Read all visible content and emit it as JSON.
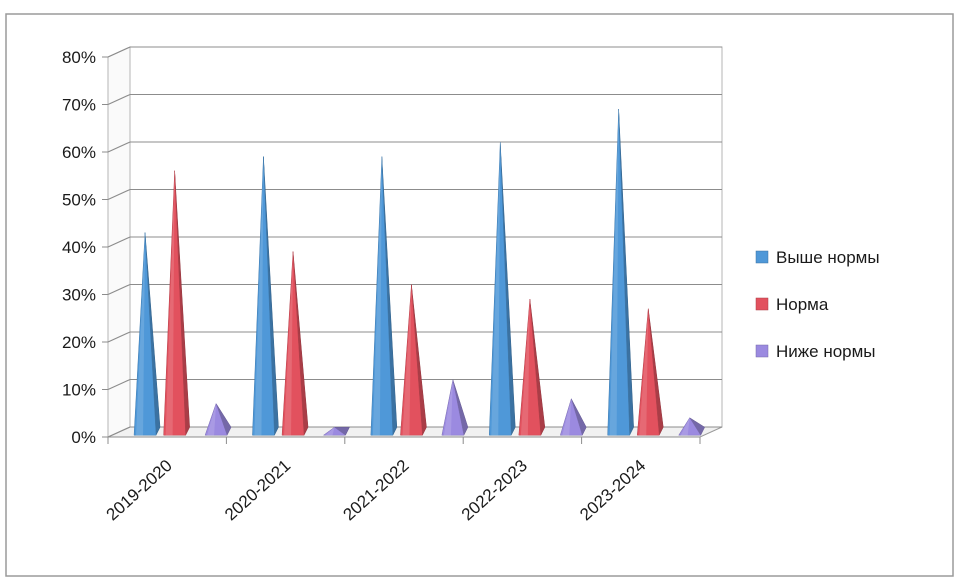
{
  "chart_data": {
    "type": "bar",
    "style": "3d-pyramid",
    "categories": [
      "2019-2020",
      "2020-2021",
      "2021-2022",
      "2022-2023",
      "2023-2024"
    ],
    "series": [
      {
        "name": "Выше нормы",
        "color": "#4f98d8",
        "values": [
          42,
          58,
          58,
          61,
          68
        ]
      },
      {
        "name": "Норма",
        "color": "#e2515e",
        "values": [
          55,
          38,
          31,
          28,
          26
        ]
      },
      {
        "name": "Ниже нормы",
        "color": "#9b8ae0",
        "values": [
          6,
          1,
          11,
          7,
          3
        ]
      }
    ],
    "y_ticks": [
      "0%",
      "10%",
      "20%",
      "30%",
      "40%",
      "50%",
      "60%",
      "70%",
      "80%"
    ],
    "ylim": [
      0,
      80
    ],
    "y_unit": "%",
    "grid": true,
    "legend_position": "right"
  }
}
